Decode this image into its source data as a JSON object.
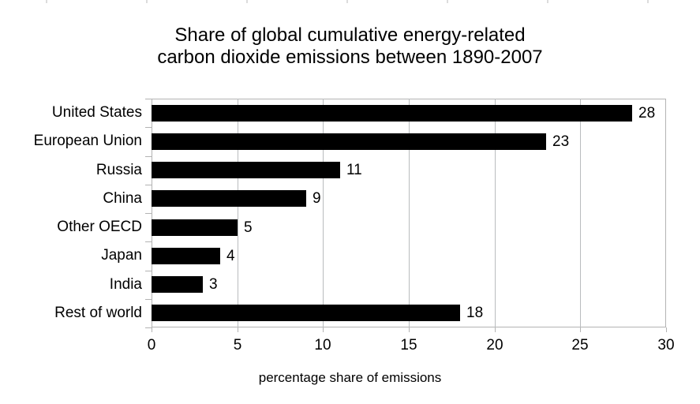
{
  "chart_data": {
    "type": "bar",
    "orientation": "horizontal",
    "title_lines": [
      "Share of global cumulative energy-related",
      "carbon dioxide emissions between 1890-2007"
    ],
    "categories": [
      "United States",
      "European Union",
      "Russia",
      "China",
      "Other OECD",
      "Japan",
      "India",
      "Rest of world"
    ],
    "values": [
      28,
      23,
      11,
      9,
      5,
      4,
      3,
      18
    ],
    "data_labels": [
      "28",
      "23",
      "11",
      "9",
      "5",
      "4",
      "3",
      "18"
    ],
    "xlabel": "percentage share of emissions",
    "xlim": [
      0,
      30
    ],
    "xticks": [
      0,
      5,
      10,
      15,
      20,
      25,
      30
    ],
    "xtick_labels": [
      "0",
      "5",
      "10",
      "15",
      "20",
      "25",
      "30"
    ],
    "grid": true,
    "legend": false,
    "colors": {
      "bar": "#000000",
      "grid": "#b3b3b3",
      "text": "#000000",
      "background": "#ffffff"
    }
  }
}
